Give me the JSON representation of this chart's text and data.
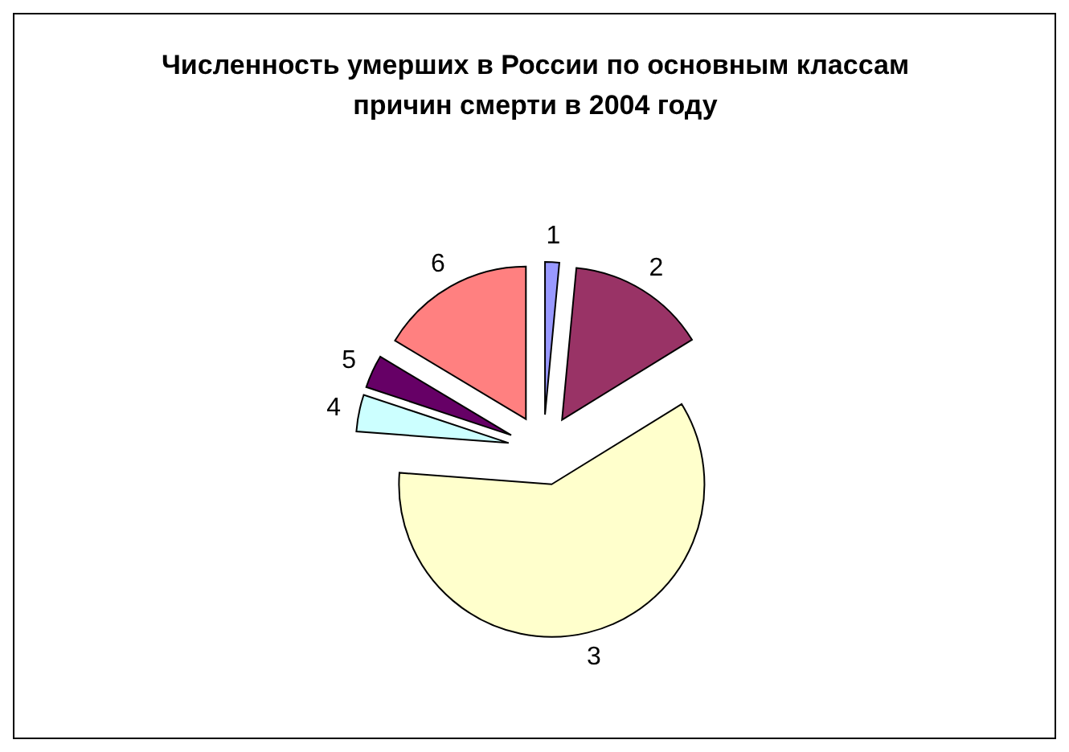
{
  "chart_data": {
    "type": "pie",
    "title": "Численность умерших в России по основным классам причин смерти в 2004 году",
    "categories": [
      "1",
      "2",
      "3",
      "4",
      "5",
      "6"
    ],
    "values": [
      1.5,
      14.7,
      60,
      3.9,
      3.5,
      16.4
    ],
    "colors": [
      "#9999ff",
      "#993366",
      "#ffffcc",
      "#ccffff",
      "#660066",
      "#ff8080"
    ],
    "legend": false
  }
}
